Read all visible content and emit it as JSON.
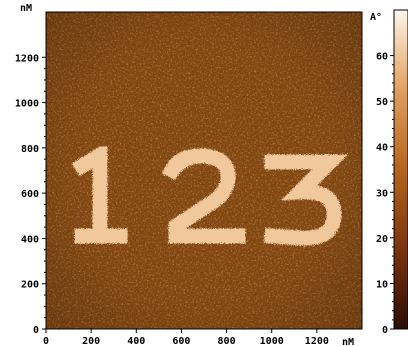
{
  "figure": {
    "image_name": "afm-height-map-123",
    "image_glyphs": "123",
    "x_axis": {
      "unit": "nM",
      "ticks": [
        "0",
        "200",
        "400",
        "600",
        "800",
        "1000",
        "1200"
      ]
    },
    "y_axis": {
      "unit": "nM",
      "ticks": [
        "0",
        "200",
        "400",
        "600",
        "800",
        "1000",
        "1200"
      ]
    },
    "colorbar": {
      "unit": "A°",
      "ticks": [
        "0",
        "10",
        "20",
        "30",
        "40",
        "50",
        "60"
      ],
      "colors": [
        "#2a0e05",
        "#7a3410",
        "#b5651d",
        "#e0a060",
        "#fff6ea"
      ]
    }
  }
}
